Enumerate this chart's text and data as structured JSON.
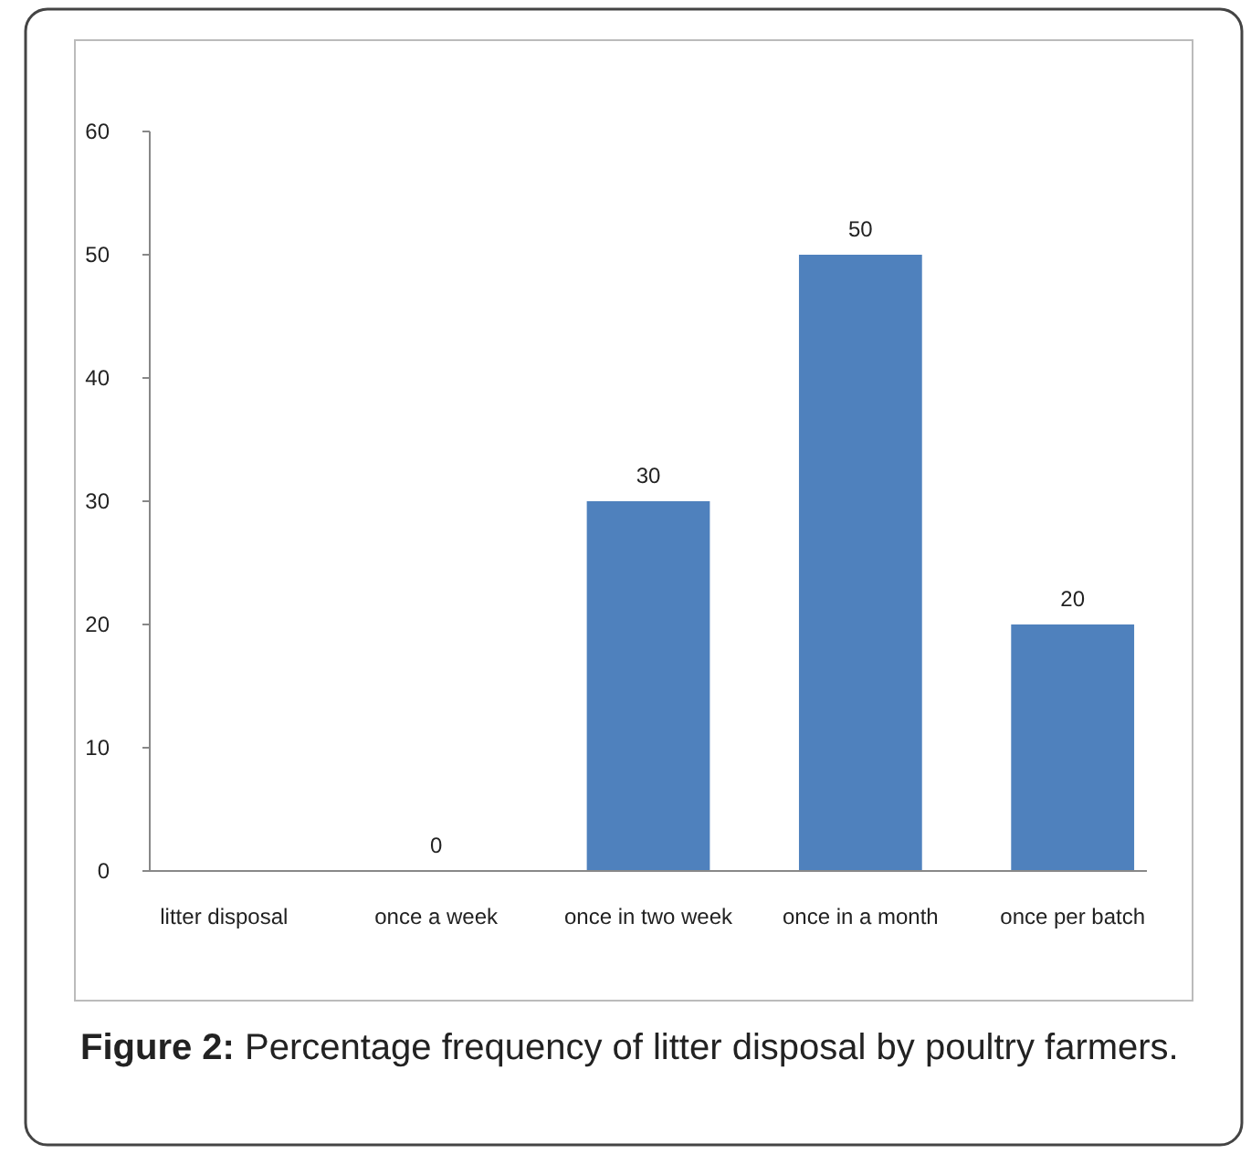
{
  "chart_data": {
    "type": "bar",
    "categories": [
      "litter disposal",
      "once a week",
      "once in two week",
      "once in a month",
      "once per batch"
    ],
    "values": [
      null,
      0,
      30,
      50,
      20
    ],
    "color": "#4f81bd",
    "ylim": [
      0,
      60
    ],
    "yticks": [
      0,
      10,
      20,
      30,
      40,
      50,
      60
    ],
    "grid": false,
    "data_labels": true,
    "annotations": [
      "Figure 2: Percentage frequency of litter disposal by poultry farmers."
    ]
  }
}
